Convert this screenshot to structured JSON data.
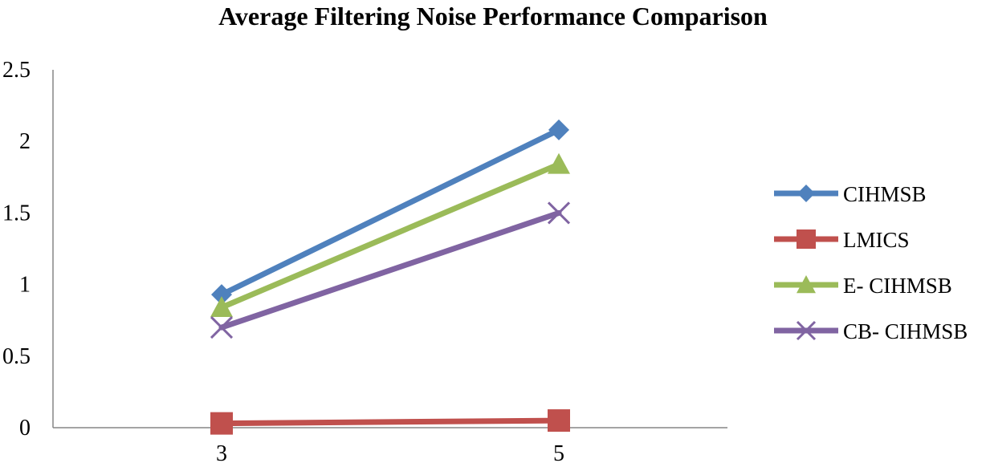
{
  "chart_data": {
    "type": "line",
    "title": "Average Filtering Noise Performance Comparison",
    "xlabel": "",
    "ylabel": "",
    "categories": [
      "3",
      "5"
    ],
    "ylim": [
      0,
      2.5
    ],
    "yticks": [
      "0",
      "0.5",
      "1",
      "1.5",
      "2",
      "2.5"
    ],
    "grid": false,
    "legend_position": "right",
    "series": [
      {
        "name": "CIHMSB",
        "values": [
          0.93,
          2.08
        ],
        "color": "#4F81BD",
        "marker": "diamond"
      },
      {
        "name": "LMICS",
        "values": [
          0.03,
          0.05
        ],
        "color": "#C0504D",
        "marker": "square"
      },
      {
        "name": "E- CIHMSB",
        "values": [
          0.84,
          1.84
        ],
        "color": "#9BBB59",
        "marker": "triangle"
      },
      {
        "name": "CB- CIHMSB",
        "values": [
          0.7,
          1.5
        ],
        "color": "#8064A2",
        "marker": "x"
      }
    ]
  }
}
